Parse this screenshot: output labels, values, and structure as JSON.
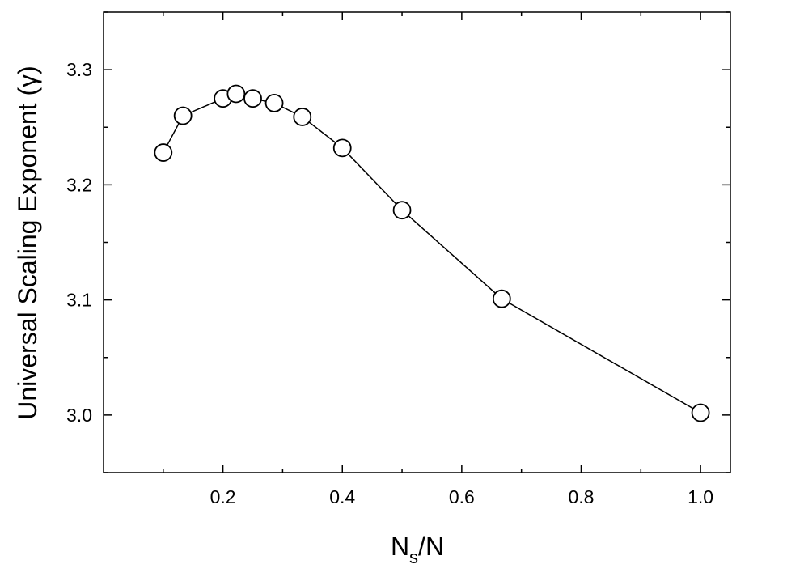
{
  "chart_data": {
    "type": "line",
    "title": "",
    "xlabel": "N",
    "xlabel_subscript": "s",
    "xlabel_suffix": "/N",
    "ylabel": "Universal Scaling Exponent  (γ)",
    "xlim": [
      0.0,
      1.05
    ],
    "ylim": [
      2.95,
      3.35
    ],
    "x_ticks": [
      0.2,
      0.4,
      0.6,
      0.8,
      1.0
    ],
    "x_tick_labels": [
      "0.2",
      "0.4",
      "0.6",
      "0.8",
      "1.0"
    ],
    "x_minor_ticks": [
      0.1,
      0.3,
      0.5,
      0.7,
      0.9
    ],
    "y_ticks": [
      3.0,
      3.1,
      3.2,
      3.3
    ],
    "y_tick_labels": [
      "3.0",
      "3.1",
      "3.2",
      "3.3"
    ],
    "y_minor_ticks": [
      2.95,
      3.05,
      3.15,
      3.25,
      3.35
    ],
    "grid": false,
    "marker": "open-circle",
    "line_color": "#000000",
    "series": [
      {
        "x": [
          0.1,
          0.133,
          0.2,
          0.222,
          0.25,
          0.286,
          0.333,
          0.4,
          0.5,
          0.667,
          1.0
        ],
        "values": [
          3.228,
          3.26,
          3.275,
          3.279,
          3.275,
          3.271,
          3.259,
          3.232,
          3.178,
          3.101,
          3.002
        ]
      }
    ]
  }
}
